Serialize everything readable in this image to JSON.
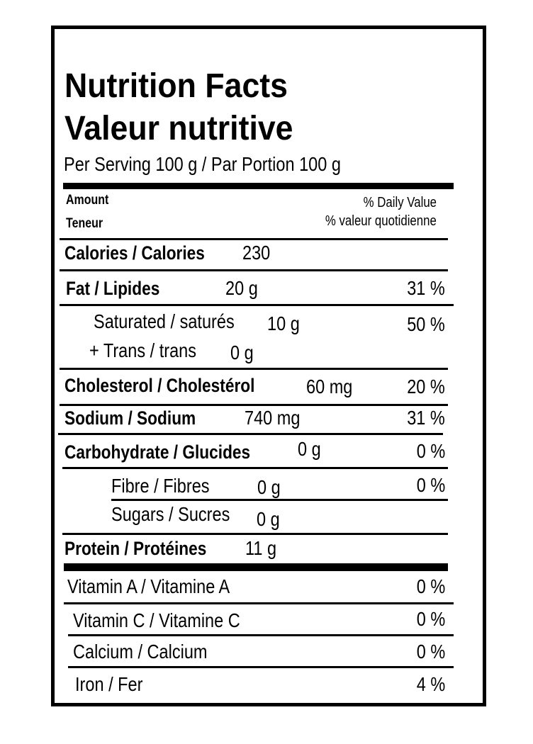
{
  "title_en": "Nutrition Facts",
  "title_fr": "Valeur nutritive",
  "serving": "Per Serving 100 g / Par Portion 100 g",
  "header": {
    "amount_en": "Amount",
    "amount_fr": "Teneur",
    "dv_en": "% Daily Value",
    "dv_fr": "% valeur quotidienne"
  },
  "calories": {
    "label": "Calories / Calories",
    "value": "230"
  },
  "nutrients": {
    "fat": {
      "label": "Fat / Lipides",
      "amount": "20 g",
      "dv": "31 %"
    },
    "saturated": {
      "label": "Saturated / saturés",
      "amount": "10 g",
      "dv": "50 %"
    },
    "trans": {
      "label": "+ Trans / trans",
      "amount": "0 g"
    },
    "cholesterol": {
      "label": "Cholesterol / Cholestérol",
      "amount": "60 mg",
      "dv": "20 %"
    },
    "sodium": {
      "label": "Sodium / Sodium",
      "amount": "740 mg",
      "dv": "31 %"
    },
    "carbohydrate": {
      "label": "Carbohydrate / Glucides",
      "amount": "0 g",
      "dv": "0 %"
    },
    "fibre": {
      "label": "Fibre / Fibres",
      "amount": "0 g",
      "dv": "0 %"
    },
    "sugars": {
      "label": "Sugars / Sucres",
      "amount": "0 g"
    },
    "protein": {
      "label": "Protein / Protéines",
      "amount": "11 g"
    }
  },
  "vitamins": {
    "vitamin_a": {
      "label": "Vitamin A / Vitamine A",
      "dv": "0 %"
    },
    "vitamin_c": {
      "label": "Vitamin C / Vitamine C",
      "dv": "0 %"
    },
    "calcium": {
      "label": "Calcium / Calcium",
      "dv": "0 %"
    },
    "iron": {
      "label": "Iron / Fer",
      "dv": "4 %"
    }
  }
}
